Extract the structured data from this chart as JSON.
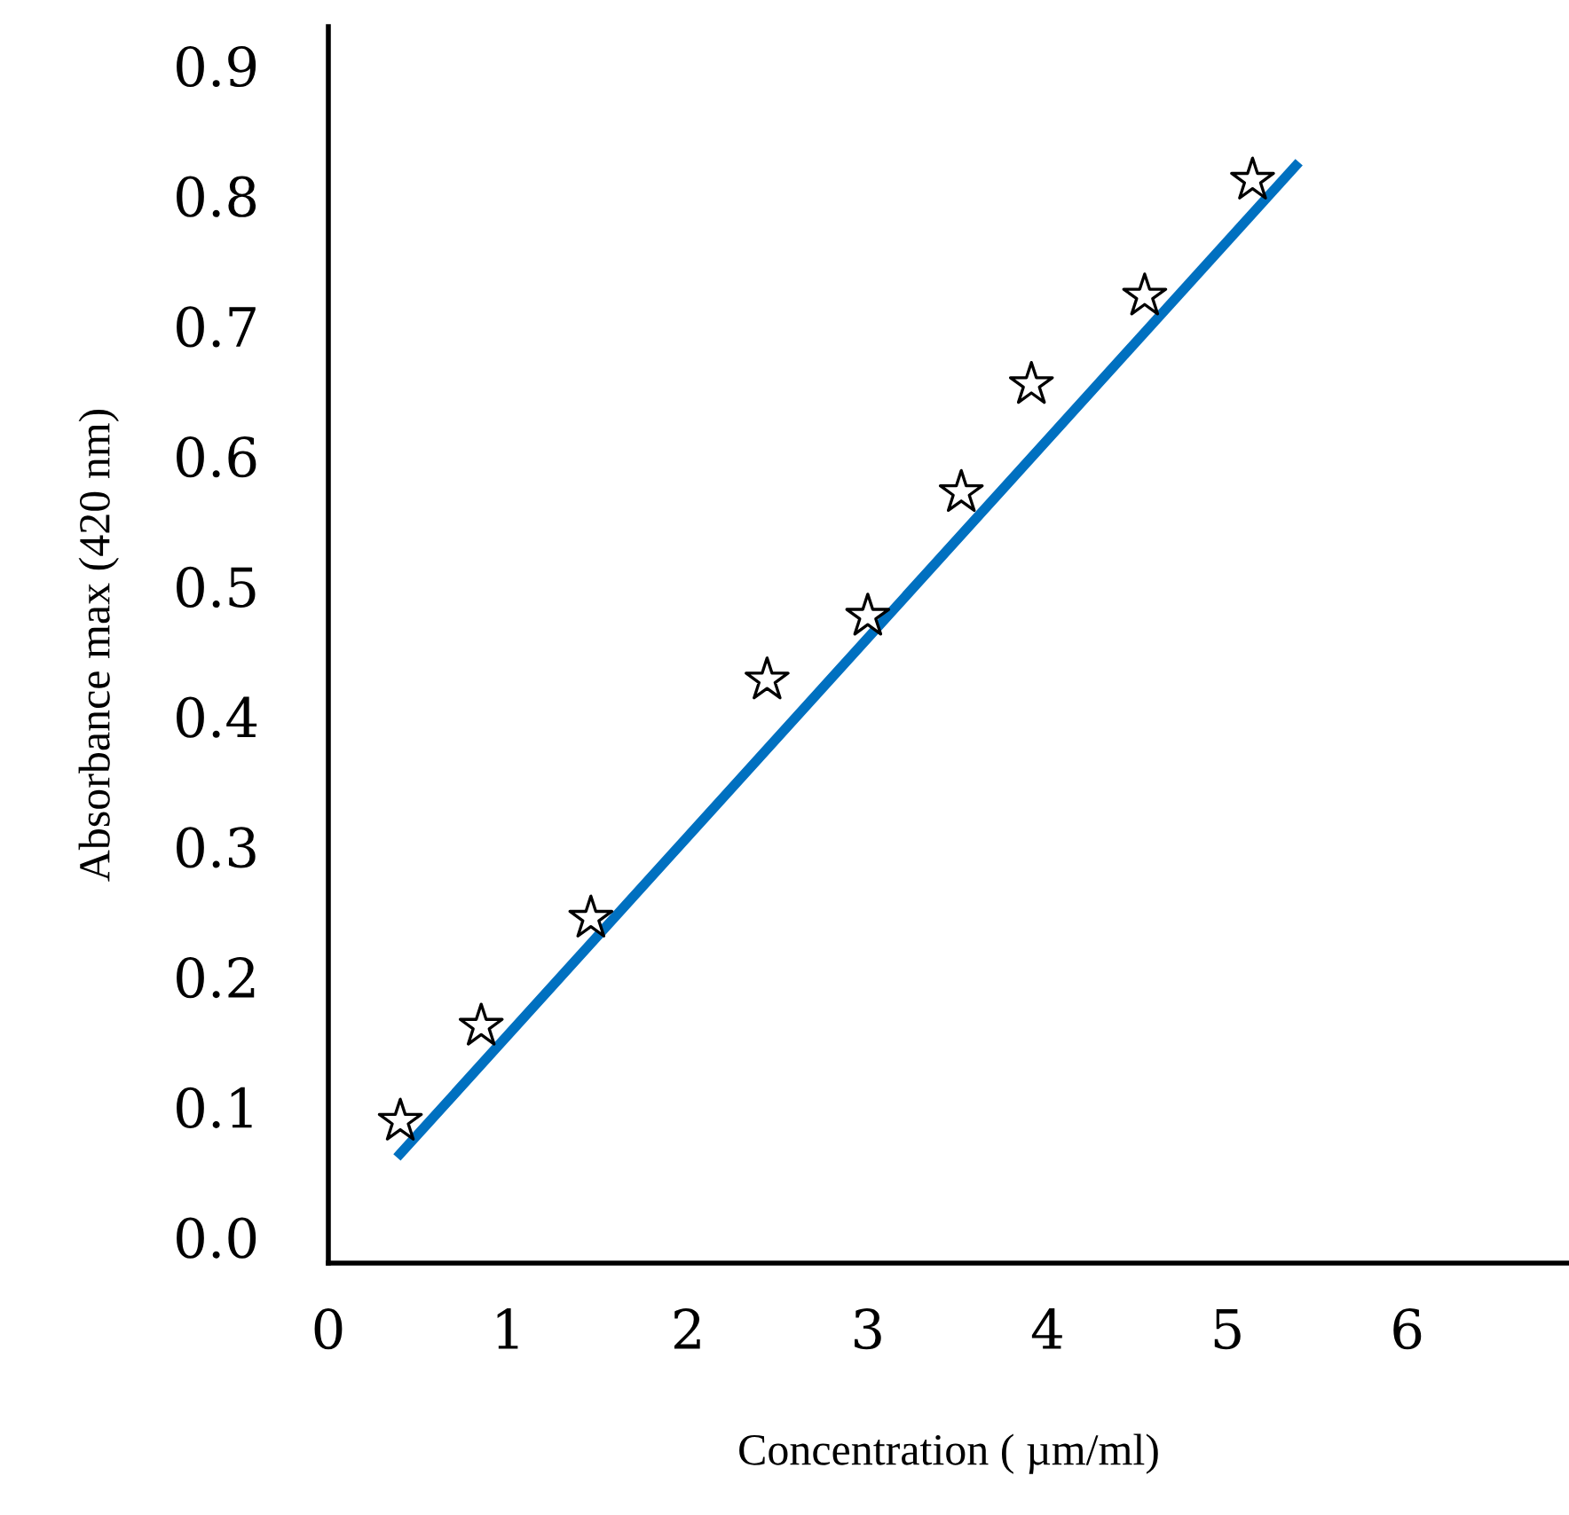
{
  "chart_data": {
    "type": "scatter",
    "xlabel": "Concentration ( µm/ml)",
    "ylabel": "Absorbance max (420 nm)",
    "xlim": [
      0,
      6.9
    ],
    "xticks": [
      0,
      1,
      2,
      3,
      4,
      5,
      6
    ],
    "ylim": [
      -0.02,
      0.93
    ],
    "yticks": [
      {
        "value": 0,
        "label": "0.0"
      },
      0.1,
      0.2,
      0.3,
      0.4,
      0.5,
      0.6,
      0.7,
      0.8,
      0.9
    ],
    "grid": false,
    "legend": false,
    "series": [
      {
        "marker": "star",
        "color": "#ffffff",
        "x": [
          0.4,
          0.85,
          1.46,
          2.44,
          3.0,
          3.52,
          3.91,
          4.54,
          5.14
        ],
        "values": [
          0.089,
          0.162,
          0.245,
          0.428,
          0.477,
          0.572,
          0.655,
          0.723,
          0.812
        ]
      },
      {
        "type": "line",
        "marker": "none",
        "line_style": "solid",
        "color": "#0070c0",
        "x": [
          0.4,
          5.38
        ],
        "values": [
          0.064,
          0.823
        ]
      }
    ]
  }
}
